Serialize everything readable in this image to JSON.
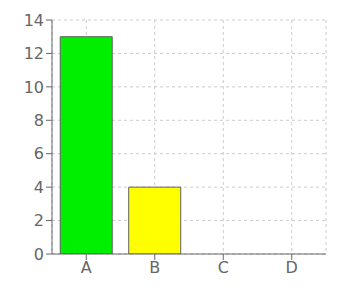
{
  "chart_data": {
    "type": "bar",
    "categories": [
      "A",
      "B",
      "C",
      "D"
    ],
    "values": [
      13,
      4,
      0,
      0
    ],
    "colors": [
      "#00ee00",
      "#ffff00",
      "#e8e8e8",
      "#e8e8e8"
    ],
    "ylim": [
      0,
      14
    ],
    "yticks": [
      0,
      2,
      4,
      6,
      8,
      10,
      12,
      14
    ],
    "grid": true
  }
}
